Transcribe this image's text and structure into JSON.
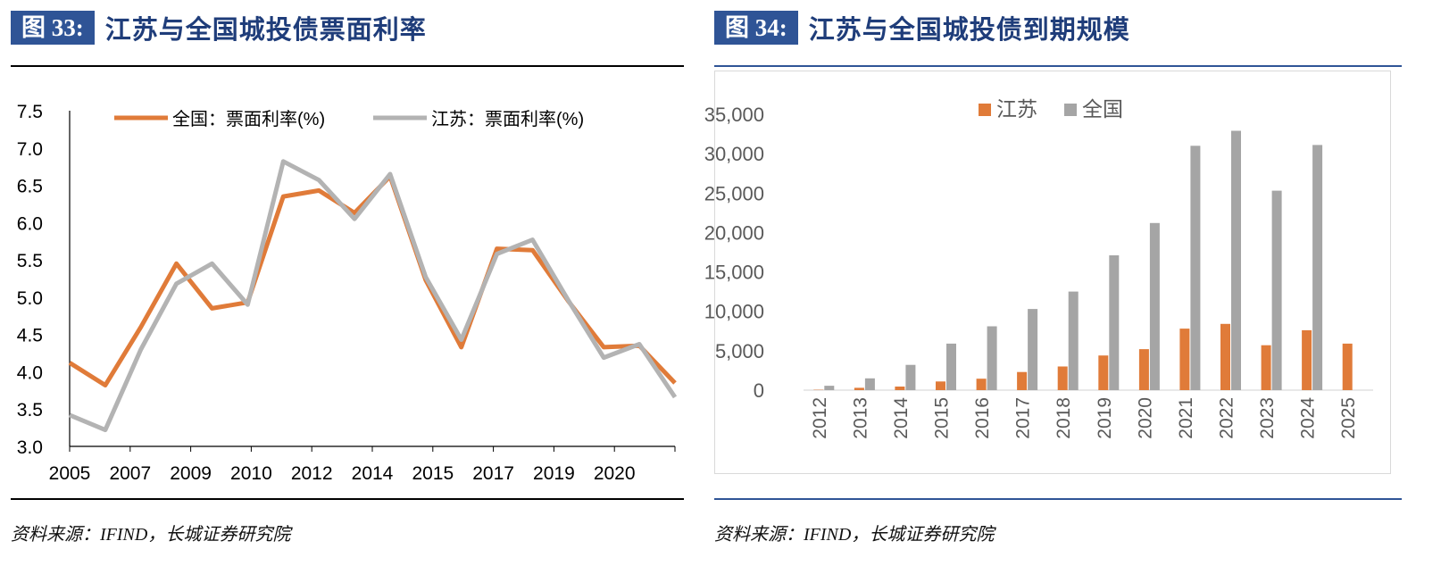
{
  "left_figure": {
    "number": "图 33:",
    "title": "江苏与全国城投债票面利率",
    "source": "资料来源：IFIND，长城证券研究院",
    "chart_data": {
      "type": "line",
      "title": "",
      "xlabel": "",
      "ylabel": "",
      "ylim": [
        3.0,
        7.5
      ],
      "yticks": [
        "3.0",
        "3.5",
        "4.0",
        "4.5",
        "5.0",
        "5.5",
        "6.0",
        "6.5",
        "7.0",
        "7.5"
      ],
      "xtick_labels": [
        "2005",
        "2007",
        "2009",
        "2010",
        "2012",
        "2014",
        "2015",
        "2017",
        "2019",
        "2020"
      ],
      "series": [
        {
          "name": "全国：票面利率(%)",
          "color": "#e07b39",
          "values": [
            4.12,
            3.82,
            4.6,
            5.45,
            4.85,
            4.93,
            6.35,
            6.43,
            6.13,
            6.62,
            5.23,
            4.33,
            5.65,
            5.63,
            4.95,
            4.33,
            4.35,
            3.85
          ]
        },
        {
          "name": "江苏：票面利率(%)",
          "color": "#b3b3b3",
          "values": [
            3.42,
            3.22,
            4.3,
            5.18,
            5.45,
            4.9,
            6.82,
            6.57,
            6.05,
            6.65,
            5.27,
            4.43,
            5.58,
            5.77,
            4.96,
            4.19,
            4.37,
            3.66
          ]
        }
      ]
    }
  },
  "right_figure": {
    "number": "图 34:",
    "title": "江苏与全国城投债到期规模",
    "source": "资料来源：IFIND，长城证券研究院",
    "chart_data": {
      "type": "bar",
      "title": "",
      "xlabel": "",
      "ylabel": "",
      "ylim": [
        0,
        35000
      ],
      "yticks": [
        "0",
        "5,000",
        "10,000",
        "15,000",
        "20,000",
        "25,000",
        "30,000",
        "35,000"
      ],
      "categories": [
        "2012",
        "2013",
        "2014",
        "2015",
        "2016",
        "2017",
        "2018",
        "2019",
        "2020",
        "2021",
        "2022",
        "2023",
        "2024",
        "2025"
      ],
      "series": [
        {
          "name": "江苏",
          "color": "#e07b39",
          "values": [
            50,
            300,
            450,
            1100,
            1450,
            2300,
            3000,
            4400,
            5200,
            7800,
            8400,
            5700,
            7600,
            5900
          ]
        },
        {
          "name": "全国",
          "color": "#a5a5a5",
          "values": [
            550,
            1500,
            3200,
            5900,
            8100,
            10300,
            12500,
            17100,
            21200,
            31000,
            32900,
            25300,
            31100,
            0
          ]
        }
      ]
    }
  }
}
